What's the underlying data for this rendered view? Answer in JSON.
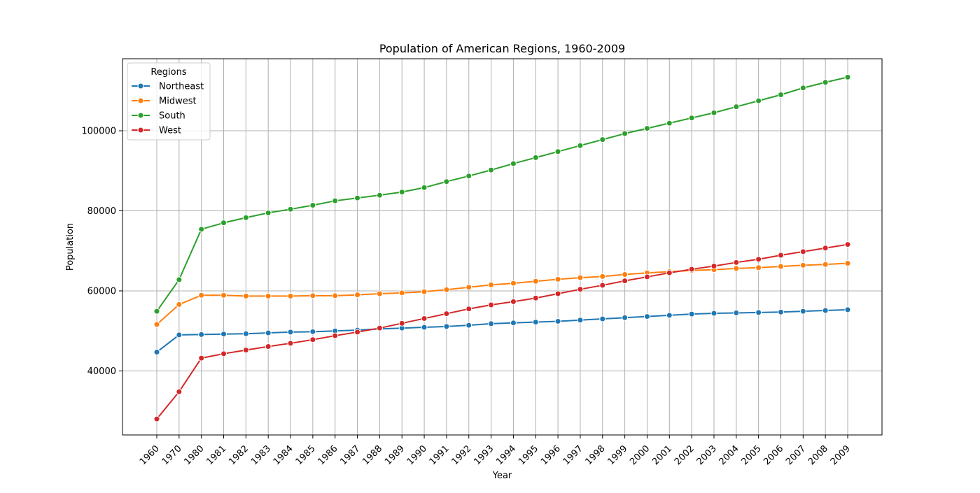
{
  "chart_data": {
    "type": "line",
    "title": "Population of American Regions, 1960-2009",
    "xlabel": "Year",
    "ylabel": "Population",
    "x_scale": "categorical",
    "categories": [
      "1960",
      "1970",
      "1980",
      "1981",
      "1982",
      "1983",
      "1984",
      "1985",
      "1986",
      "1987",
      "1988",
      "1989",
      "1990",
      "1991",
      "1992",
      "1993",
      "1994",
      "1995",
      "1996",
      "1997",
      "1998",
      "1999",
      "2000",
      "2001",
      "2002",
      "2003",
      "2004",
      "2005",
      "2006",
      "2007",
      "2008",
      "2009"
    ],
    "ylim": [
      24000,
      118000
    ],
    "yticks": [
      40000,
      60000,
      80000,
      100000
    ],
    "ytick_labels": [
      "40000",
      "60000",
      "80000",
      "100000"
    ],
    "grid": true,
    "marker": "circle",
    "legend": {
      "title": "Regions",
      "location": "upper-left"
    },
    "series": [
      {
        "name": "Northeast",
        "color": "#1f77b4",
        "values": [
          44700,
          49000,
          49100,
          49200,
          49300,
          49500,
          49700,
          49800,
          50000,
          50200,
          50500,
          50700,
          50900,
          51100,
          51400,
          51800,
          52000,
          52200,
          52400,
          52700,
          53000,
          53300,
          53600,
          53900,
          54200,
          54400,
          54500,
          54600,
          54700,
          54900,
          55100,
          55300
        ]
      },
      {
        "name": "Midwest",
        "color": "#ff7f0e",
        "values": [
          51600,
          56600,
          58900,
          58900,
          58700,
          58700,
          58700,
          58800,
          58800,
          59000,
          59300,
          59500,
          59800,
          60300,
          60900,
          61500,
          61900,
          62400,
          62900,
          63300,
          63600,
          64100,
          64500,
          64800,
          65100,
          65300,
          65600,
          65800,
          66100,
          66400,
          66600,
          66900
        ]
      },
      {
        "name": "South",
        "color": "#2ca02c",
        "values": [
          54900,
          62800,
          75400,
          77000,
          78300,
          79500,
          80400,
          81400,
          82500,
          83200,
          83900,
          84700,
          85800,
          87300,
          88700,
          90200,
          91800,
          93300,
          94800,
          96300,
          97800,
          99300,
          100600,
          101900,
          103200,
          104500,
          106000,
          107500,
          109000,
          110700,
          112100,
          113400
        ]
      },
      {
        "name": "West",
        "color": "#d62728",
        "values": [
          28000,
          34800,
          43200,
          44300,
          45200,
          46100,
          46900,
          47800,
          48800,
          49700,
          50700,
          51900,
          53100,
          54300,
          55500,
          56500,
          57300,
          58200,
          59300,
          60400,
          61400,
          62500,
          63500,
          64500,
          65400,
          66200,
          67100,
          67900,
          68900,
          69800,
          70700,
          71600
        ]
      }
    ]
  }
}
